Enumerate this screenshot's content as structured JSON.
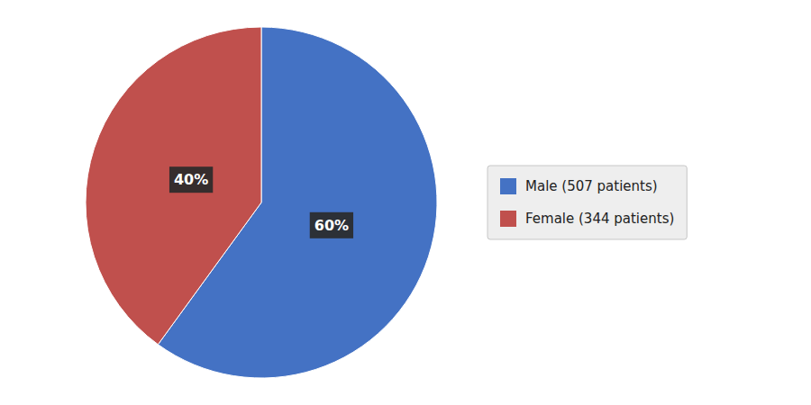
{
  "chart_data": {
    "type": "pie",
    "categories": [
      "Male (507 patients)",
      "Female (344 patients)"
    ],
    "values": [
      60,
      40
    ],
    "value_labels": [
      "60%",
      "40%"
    ],
    "colors": [
      "#4472C4",
      "#C0504D"
    ],
    "data_labels": true,
    "legend": "right"
  }
}
